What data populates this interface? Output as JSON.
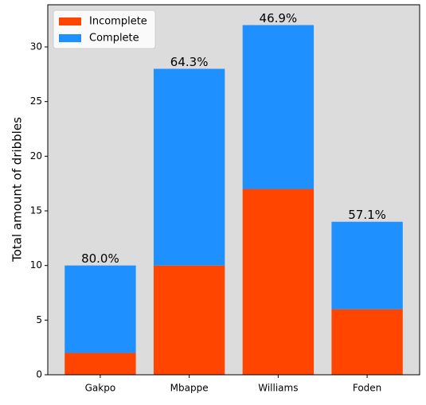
{
  "chart_data": {
    "type": "stacked_bar",
    "ylabel": "Total amount of dribbles",
    "categories": [
      "Gakpo",
      "Mbappe",
      "Williams",
      "Foden"
    ],
    "series": [
      {
        "name": "Incomplete",
        "color": "#ff4500",
        "values": [
          2,
          10,
          17,
          6
        ]
      },
      {
        "name": "Complete",
        "color": "#1e90ff",
        "values": [
          8,
          18,
          15,
          8
        ]
      }
    ],
    "annotations": [
      "80.0%",
      "64.3%",
      "46.9%",
      "57.1%"
    ],
    "ylim": [
      0,
      33.86
    ],
    "yticks": [
      0,
      5,
      10,
      15,
      20,
      25,
      30
    ],
    "legend": "upper left",
    "background": "#dcdcdc"
  }
}
